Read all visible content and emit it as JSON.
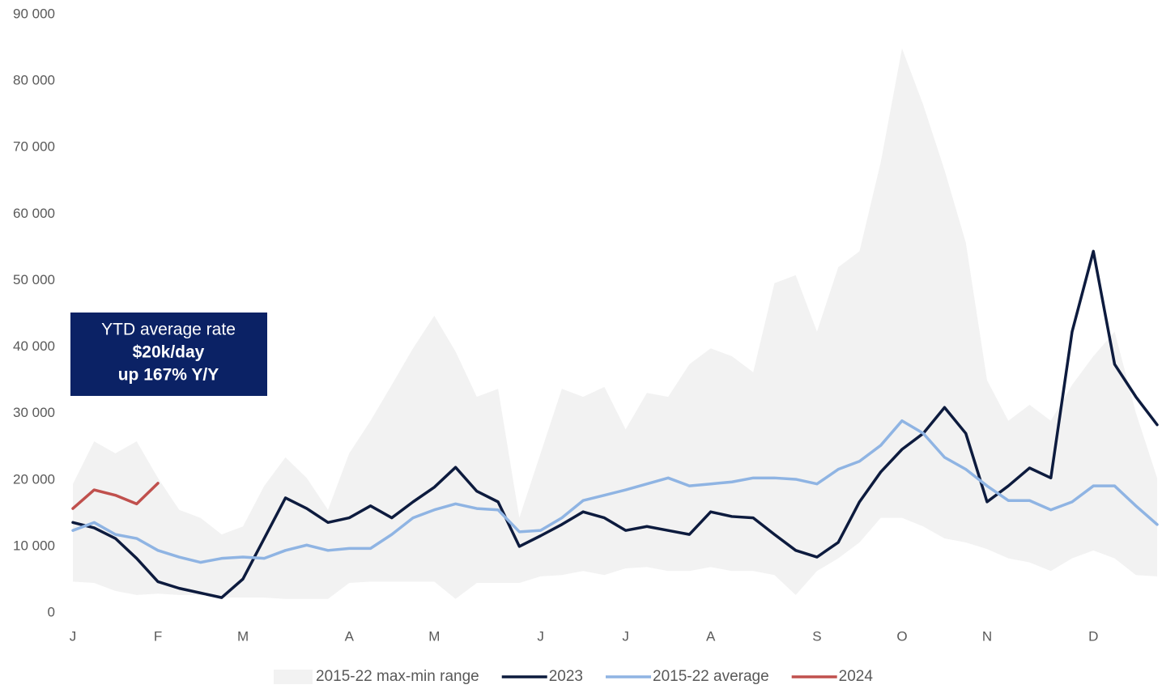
{
  "chart_data": {
    "type": "line",
    "categories": [
      "J",
      null,
      null,
      null,
      "F",
      null,
      null,
      null,
      "M",
      null,
      null,
      null,
      null,
      "A",
      null,
      null,
      null,
      "M",
      null,
      null,
      null,
      null,
      "J",
      null,
      null,
      null,
      "J",
      null,
      null,
      null,
      "A",
      null,
      null,
      null,
      null,
      "S",
      null,
      null,
      null,
      "O",
      null,
      null,
      null,
      "N",
      null,
      null,
      null,
      null,
      "D",
      null,
      null,
      null
    ],
    "ylim": [
      0,
      90000
    ],
    "yticks": [
      0,
      {
        "value": 10000,
        "label": "10 000"
      },
      {
        "value": 20000,
        "label": "20 000"
      },
      {
        "value": 30000,
        "label": "30 000"
      },
      {
        "value": 40000,
        "label": "40 000"
      },
      {
        "value": 50000,
        "label": "50 000"
      },
      {
        "value": 60000,
        "label": "60 000"
      },
      {
        "value": 70000,
        "label": "70 000"
      },
      {
        "value": 80000,
        "label": "80 000"
      },
      {
        "value": 90000,
        "label": "90 000"
      }
    ],
    "grid": false,
    "legend": "bottom",
    "annotation": [
      "YTD average rate",
      "$20k/day",
      "up 167% Y/Y"
    ],
    "annotation_color": "#0b2265",
    "series": [
      {
        "name": "2015-22 max-min range",
        "color": "#f2f2f2",
        "max": [
          19400,
          25800,
          24000,
          25800,
          20300,
          15500,
          14300,
          11800,
          13000,
          19100,
          23400,
          20300,
          15500,
          24000,
          28900,
          34300,
          39800,
          44700,
          39300,
          32500,
          33700,
          14300,
          24000,
          33700,
          32500,
          34000,
          27600,
          33100,
          32500,
          37400,
          39800,
          38600,
          36200,
          49600,
          50800,
          42300,
          52000,
          54400,
          67800,
          84900,
          76400,
          66600,
          55700,
          35000,
          28900,
          31300,
          28900,
          34300,
          38600,
          42300,
          30100,
          20300
        ],
        "min": [
          4700,
          4500,
          3300,
          2700,
          2900,
          2700,
          2700,
          2300,
          2300,
          2300,
          2100,
          2100,
          2100,
          4500,
          4700,
          4700,
          4700,
          4700,
          2100,
          4500,
          4500,
          4500,
          5500,
          5700,
          6300,
          5700,
          6700,
          6900,
          6300,
          6300,
          6900,
          6300,
          6300,
          5700,
          2700,
          6300,
          8200,
          10600,
          14300,
          14300,
          13000,
          11200,
          10600,
          9600,
          8200,
          7600,
          6300,
          8200,
          9400,
          8200,
          5700,
          5500
        ]
      },
      {
        "name": "2023",
        "color": "#0d1b3e",
        "values": [
          13600,
          12800,
          11200,
          8200,
          4700,
          3700,
          3000,
          2300,
          5100,
          11200,
          17300,
          15700,
          13600,
          14300,
          16100,
          14300,
          16700,
          18900,
          21900,
          18300,
          16700,
          10000,
          11600,
          13300,
          15200,
          14300,
          12400,
          13000,
          12400,
          11800,
          15200,
          14500,
          14300,
          11800,
          9400,
          8400,
          10600,
          16700,
          21200,
          24600,
          27000,
          30900,
          27000,
          16700,
          19100,
          21800,
          20300,
          42300,
          54400,
          37400,
          32500,
          28300
        ]
      },
      {
        "name": "2015-22 average",
        "color": "#8fb4e3",
        "values": [
          12400,
          13600,
          11800,
          11200,
          9400,
          8400,
          7600,
          8200,
          8400,
          8200,
          9400,
          10200,
          9400,
          9700,
          9700,
          11800,
          14300,
          15500,
          16400,
          15700,
          15500,
          12200,
          12400,
          14300,
          16900,
          17700,
          18500,
          19400,
          20300,
          19100,
          19400,
          19700,
          20300,
          20300,
          20100,
          19400,
          21600,
          22800,
          25200,
          28900,
          27000,
          23400,
          21600,
          19100,
          16900,
          16900,
          15500,
          16700,
          19100,
          19100,
          16100,
          13300
        ]
      },
      {
        "name": "2024",
        "color": "#c0504d",
        "values": [
          15700,
          18500,
          17700,
          16400,
          19500,
          null,
          null,
          null,
          null,
          null,
          null,
          null,
          null,
          null,
          null,
          null,
          null,
          null,
          null,
          null,
          null,
          null,
          null,
          null,
          null,
          null,
          null,
          null,
          null,
          null,
          null,
          null,
          null,
          null,
          null,
          null,
          null,
          null,
          null,
          null,
          null,
          null,
          null,
          null,
          null,
          null,
          null,
          null,
          null,
          null,
          null,
          null
        ]
      }
    ]
  }
}
